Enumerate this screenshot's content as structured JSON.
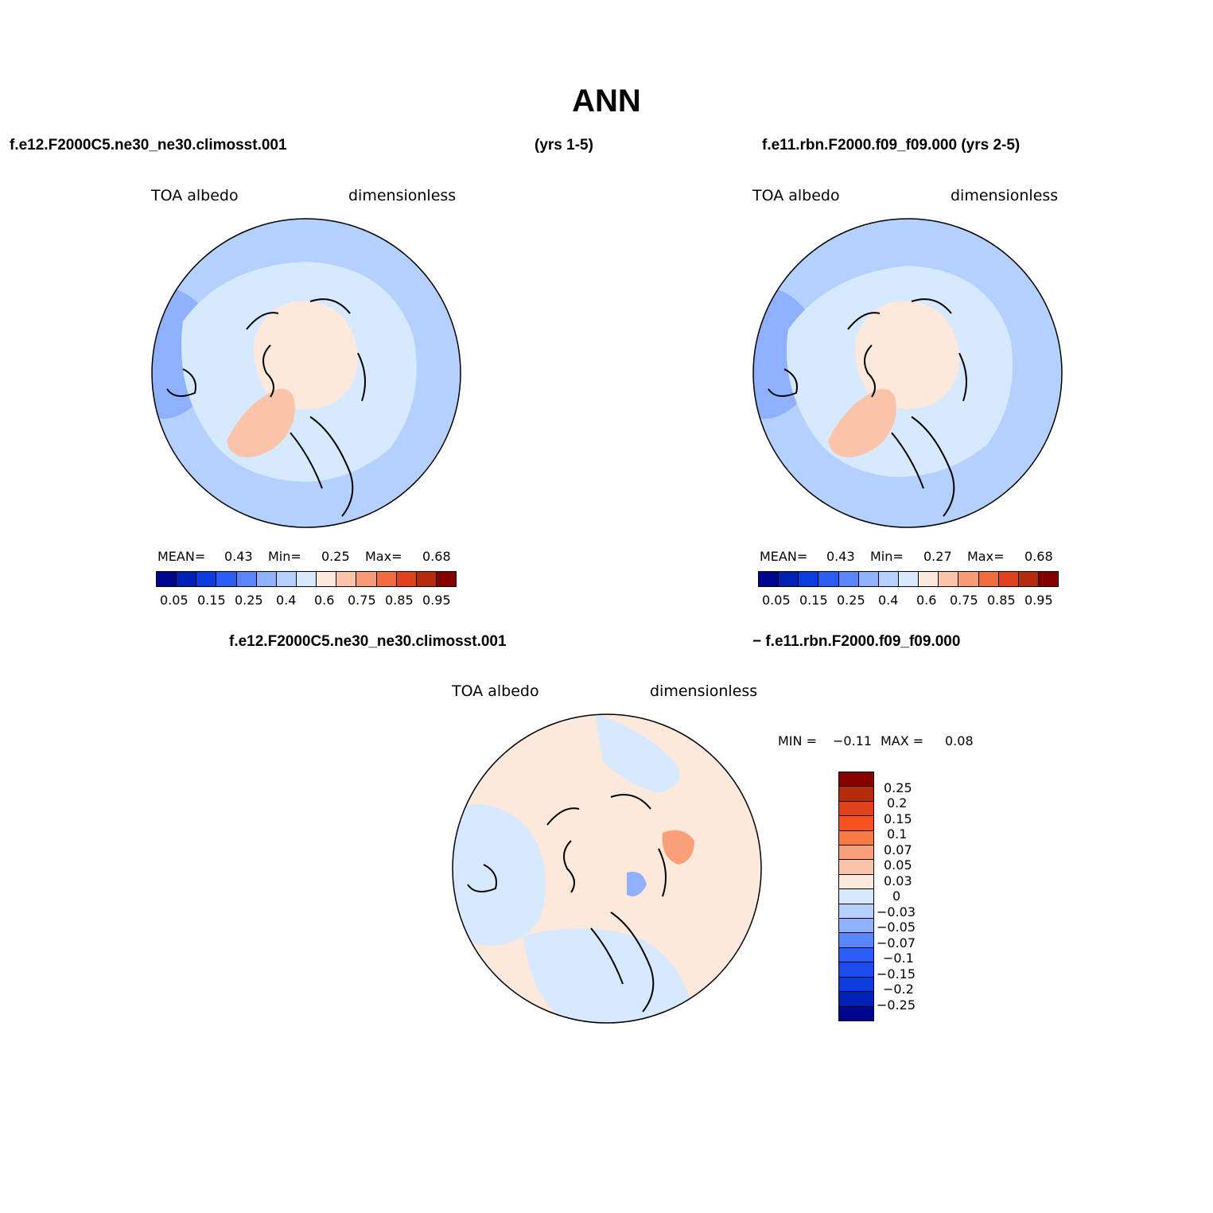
{
  "figure": {
    "title": "ANN"
  },
  "panels": [
    {
      "case_left": "f.e12.F2000C5.ne30_ne30.climosst.001",
      "case_right": "(yrs 1-5)",
      "variable": "TOA albedo",
      "units": "dimensionless",
      "stats": {
        "mean_label": "MEAN=",
        "mean": "0.43",
        "min_label": "Min=",
        "min": "0.25",
        "max_label": "Max=",
        "max": "0.68"
      },
      "colorbar_ticks": [
        "0.05",
        "0.15",
        "0.25",
        "0.4",
        "0.6",
        "0.75",
        "0.85",
        "0.95"
      ],
      "fill": {
        "ocean_base": "#b4d0fc",
        "pole": "#fde9dc",
        "greenland": "#fbc4aa",
        "band": "#d6e9fe"
      }
    },
    {
      "case_left": "f.e11.rbn.F2000.f09_f09.000 (yrs 2-5)",
      "variable": "TOA albedo",
      "units": "dimensionless",
      "stats": {
        "mean_label": "MEAN=",
        "mean": "0.43",
        "min_label": "Min=",
        "min": "0.27",
        "max_label": "Max=",
        "max": "0.68"
      },
      "colorbar_ticks": [
        "0.05",
        "0.15",
        "0.25",
        "0.4",
        "0.6",
        "0.75",
        "0.85",
        "0.95"
      ],
      "fill": {
        "ocean_base": "#b4d0fc",
        "pole": "#fde9dc",
        "greenland": "#fbc4aa",
        "band": "#d6e9fe"
      }
    }
  ],
  "difference": {
    "case_left": "f.e12.F2000C5.ne30_ne30.climosst.001",
    "case_right": "- f.e11.rbn.F2000.f09_f09.000",
    "variable": "TOA albedo",
    "units": "dimensionless",
    "stats": {
      "min_label": "MIN =",
      "min": "-0.11",
      "max_label": "MAX =",
      "max": "0.08"
    },
    "colorbar_ticks": [
      "0.25",
      "0.2",
      "0.15",
      "0.1",
      "0.07",
      "0.05",
      "0.03",
      "0",
      "-0.03",
      "-0.05",
      "-0.07",
      "-0.1",
      "-0.15",
      "-0.2",
      "-0.25"
    ]
  },
  "colormaps": {
    "absolute": [
      "#000590",
      "#0021b6",
      "#0a3ce0",
      "#2a5cf8",
      "#5a85fc",
      "#8fb0fc",
      "#b4d0fc",
      "#d6e9fe",
      "#fde9dc",
      "#fbc4aa",
      "#f79c75",
      "#f26b3e",
      "#e0401a",
      "#b82a0c",
      "#860000"
    ],
    "difference": [
      "#860000",
      "#b82a0c",
      "#e0401a",
      "#f75122",
      "#f97a44",
      "#f9a07a",
      "#fbc4aa",
      "#fde9dc",
      "#d6e9fe",
      "#b4d0fc",
      "#8fb0fc",
      "#5a85fc",
      "#2a5cf8",
      "#1c4cef",
      "#0a3ce0",
      "#0021b6",
      "#000590"
    ]
  }
}
